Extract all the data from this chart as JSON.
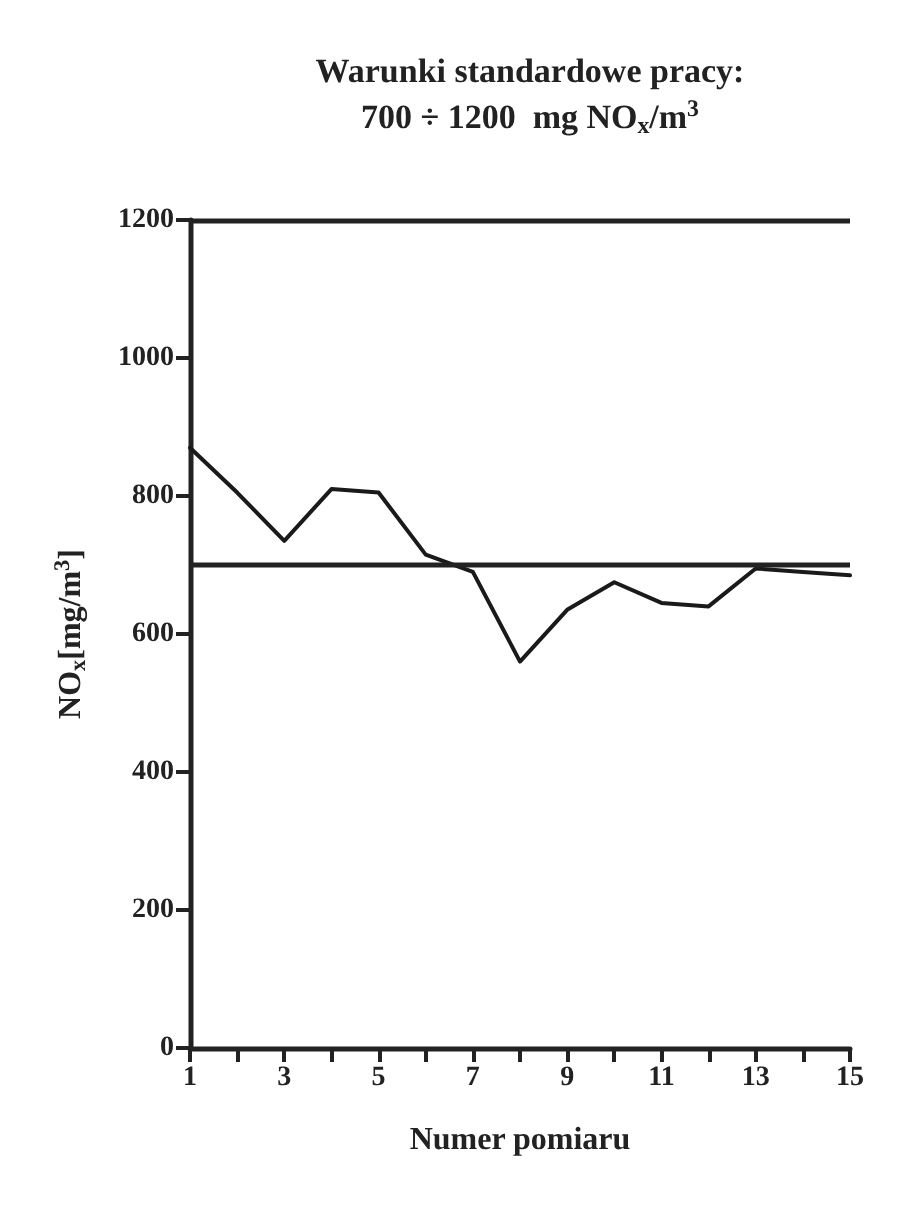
{
  "chart_data": {
    "type": "line",
    "title": "Warunki standardowe pracy:",
    "subtitle": "700 ÷ 1200  mg NO$_{x}$/m$^{3}$",
    "xlabel": "Numer pomiaru",
    "ylabel": "NO$_{x}$[mg/m$^{3}$]",
    "x": [
      1,
      2,
      3,
      4,
      5,
      6,
      7,
      8,
      9,
      10,
      11,
      12,
      13,
      14,
      15
    ],
    "series": [
      {
        "color": "#1a1a1a",
        "values": [
          870,
          805,
          735,
          810,
          805,
          715,
          690,
          560,
          635,
          675,
          645,
          640,
          695,
          690,
          685
        ]
      }
    ],
    "xlim": [
      1,
      15
    ],
    "xticks": [
      1,
      {
        "value": 2,
        "label": null
      },
      3,
      {
        "value": 4,
        "label": null
      },
      5,
      {
        "value": 6,
        "label": null
      },
      7,
      {
        "value": 8,
        "label": null
      },
      9,
      {
        "value": 10,
        "label": null
      },
      11,
      {
        "value": 12,
        "label": null
      },
      13,
      {
        "value": 14,
        "label": null
      },
      15
    ],
    "ylim": [
      0,
      1200
    ],
    "yticks": [
      0,
      200,
      400,
      600,
      800,
      1000,
      1200
    ],
    "ref_lines": [
      {
        "axis": "y",
        "value": 700
      },
      {
        "axis": "y",
        "value": 1200
      }
    ],
    "grid": false,
    "marker": "none",
    "line_style": "solid"
  }
}
